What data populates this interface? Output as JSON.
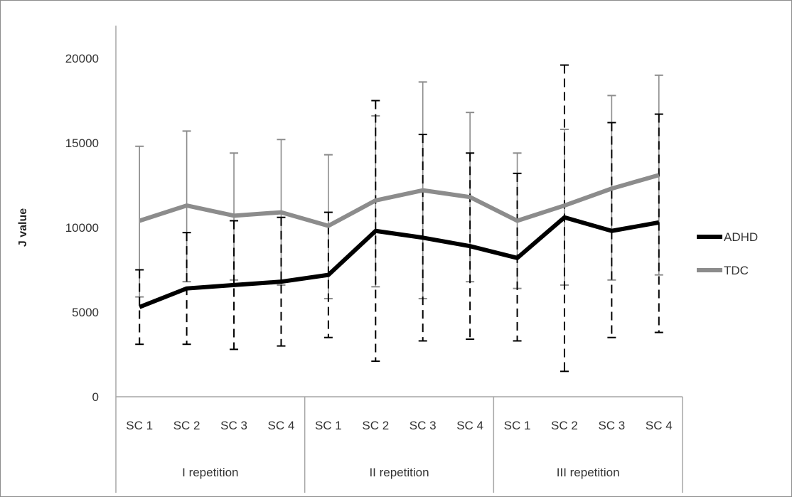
{
  "chart_data": {
    "type": "line",
    "ylabel": "J value",
    "ylim": [
      0,
      20000
    ],
    "yticks": [
      "0",
      "5000",
      "10000",
      "15000",
      "20000"
    ],
    "grid": false,
    "legend_position": "right",
    "categories": [
      "SC 1",
      "SC 2",
      "SC 3",
      "SC 4",
      "SC 1",
      "SC 2",
      "SC 3",
      "SC 4",
      "SC 1",
      "SC 2",
      "SC 3",
      "SC 4"
    ],
    "groups": [
      {
        "label": "I repetition",
        "span": 4
      },
      {
        "label": "II repetition",
        "span": 4
      },
      {
        "label": "III repetition",
        "span": 4
      }
    ],
    "series": [
      {
        "name": "ADHD",
        "color": "#000000",
        "error_style": "dashed",
        "values": [
          5300,
          6400,
          6600,
          6800,
          7200,
          9800,
          9400,
          8900,
          8200,
          10600,
          9800,
          10300
        ],
        "error_low": [
          3100,
          3100,
          2800,
          3000,
          3500,
          2100,
          3300,
          3400,
          3300,
          1500,
          3500,
          3800
        ],
        "error_high": [
          7500,
          9700,
          10400,
          10600,
          10900,
          17500,
          15500,
          14400,
          13200,
          19600,
          16200,
          16700
        ]
      },
      {
        "name": "TDC",
        "color": "#8c8c8c",
        "error_style": "solid",
        "values": [
          10400,
          11300,
          10700,
          10900,
          10100,
          11600,
          12200,
          11800,
          10400,
          11300,
          12300,
          13100
        ],
        "error_low": [
          5900,
          6800,
          6900,
          6600,
          5800,
          6500,
          5800,
          6800,
          6400,
          6600,
          6900,
          7200
        ],
        "error_high": [
          14800,
          15700,
          14400,
          15200,
          14300,
          16600,
          18600,
          16800,
          14400,
          15800,
          17800,
          19000
        ]
      }
    ]
  }
}
